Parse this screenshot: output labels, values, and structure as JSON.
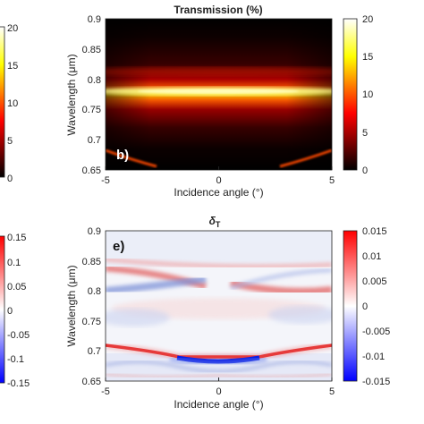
{
  "chart_data": [
    {
      "id": "partial-colorbar-top",
      "type": "heatmap",
      "title": "",
      "tick_labels": [
        "20",
        "15",
        "10",
        "5",
        "0"
      ],
      "clim": [
        0,
        20
      ],
      "colormap": "hot"
    },
    {
      "id": "panel-b",
      "type": "heatmap",
      "title": "Transmission (%)",
      "panel_label": "b)",
      "xlabel": "Incidence angle (°)",
      "ylabel": "Wavelength (μm)",
      "xlim": [
        -5,
        5
      ],
      "ylim": [
        0.65,
        0.9
      ],
      "x_ticks": [
        "-5",
        "0",
        "5"
      ],
      "y_ticks": [
        "0.9",
        "0.85",
        "0.8",
        "0.75",
        "0.7",
        "0.65"
      ],
      "colormap": "hot",
      "clim": [
        0,
        20
      ],
      "colorbar_ticks": [
        "20",
        "15",
        "10",
        "5",
        "0"
      ],
      "features": [
        {
          "name": "main-peak",
          "wavelength_um": 0.775,
          "peak_value": 20
        },
        {
          "name": "secondary-band",
          "wavelength_um": 0.815,
          "peak_value": 6
        },
        {
          "name": "edge-branch-left",
          "x_start": -5,
          "wavelength_start_um": 0.655,
          "x_end": -3,
          "wavelength_end_um": 0.67,
          "peak_value": 8
        },
        {
          "name": "edge-branch-right",
          "x_start": 3,
          "wavelength_start_um": 0.67,
          "x_end": 5,
          "wavelength_end_um": 0.655,
          "peak_value": 8
        }
      ]
    },
    {
      "id": "partial-colorbar-bottom",
      "type": "heatmap",
      "title": "",
      "tick_labels": [
        "0.15",
        "0.1",
        "0.05",
        "0",
        "-0.05",
        "-0.1",
        "-0.15"
      ],
      "clim": [
        -0.15,
        0.15
      ],
      "colormap": "blue-white-red"
    },
    {
      "id": "panel-e",
      "type": "heatmap",
      "title_base": "δ",
      "title_sub": "T",
      "panel_label": "e)",
      "xlabel": "Incidence angle (°)",
      "ylabel": "Wavelength (μm)",
      "xlim": [
        -5,
        5
      ],
      "ylim": [
        0.65,
        0.9
      ],
      "x_ticks": [
        "-5",
        "0",
        "5"
      ],
      "y_ticks": [
        "0.9",
        "0.85",
        "0.8",
        "0.75",
        "0.7",
        "0.65"
      ],
      "colormap": "blue-white-red",
      "clim": [
        -0.015,
        0.015
      ],
      "colorbar_ticks": [
        "0.015",
        "0.01",
        "0.005",
        "0",
        "-0.005",
        "-0.01",
        "-0.015"
      ],
      "features": [
        {
          "name": "red-band-top",
          "wavelength_um": 0.846,
          "value": 0.004
        },
        {
          "name": "red-band-upper",
          "wavelength_um": 0.822,
          "value": 0.009
        },
        {
          "name": "blue-band-upper",
          "wavelength_um": 0.805,
          "value": -0.008
        },
        {
          "name": "red-line-lower",
          "wavelength_at_edge_um": 0.708,
          "wavelength_at_center_um": 0.688,
          "value": 0.014
        },
        {
          "name": "blue-dip-center",
          "wavelength_um": 0.686,
          "value": -0.015
        }
      ]
    }
  ]
}
